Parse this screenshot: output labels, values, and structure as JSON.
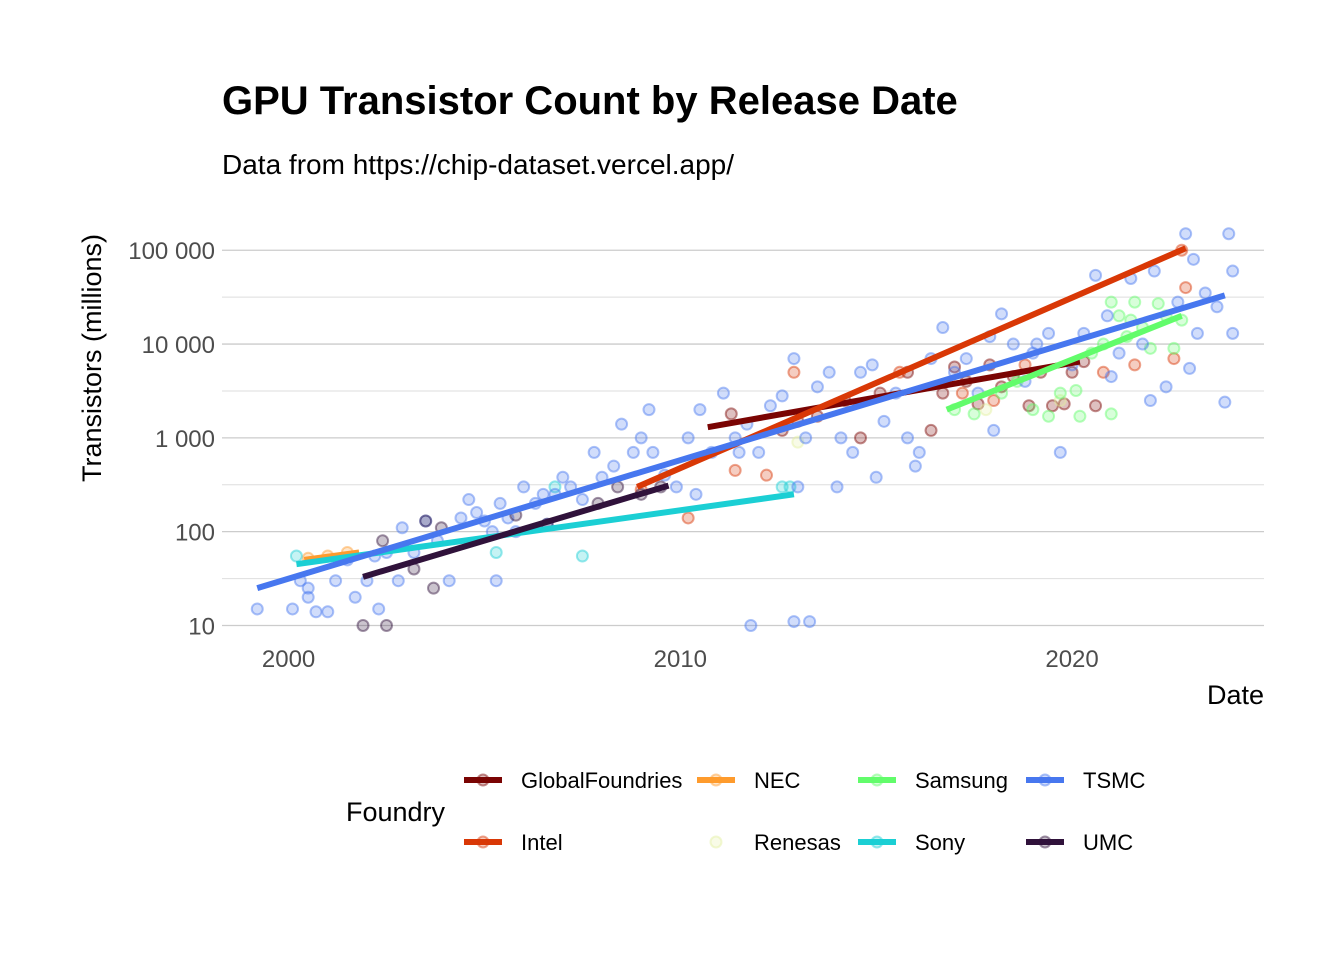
{
  "chart_data": {
    "type": "scatter",
    "title": "GPU Transistor Count by Release Date",
    "subtitle": "Data from https://chip-dataset.vercel.app/",
    "xlabel": "Date",
    "ylabel": "Transistors (millions)",
    "x_scale": "time",
    "y_scale": "log10",
    "xlim": [
      1998.3,
      2024.9
    ],
    "ylim": [
      7,
      200000
    ],
    "x_ticks": [
      2000,
      2010,
      2020
    ],
    "x_tick_labels": [
      "2000",
      "2010",
      "2020"
    ],
    "y_ticks": [
      10,
      100,
      1000,
      10000,
      100000
    ],
    "y_tick_labels": [
      "10",
      "100",
      "1 000",
      "10 000",
      "100 000"
    ],
    "grid": true,
    "legend_title": "Foundry",
    "legend_position": "bottom",
    "series": [
      {
        "name": "GlobalFoundries",
        "color": "#7a0403",
        "trend": [
          [
            2010.7,
            1300
          ],
          [
            2020.2,
            6500
          ]
        ],
        "points": [
          [
            2011.3,
            1800
          ],
          [
            2012.6,
            1200
          ],
          [
            2013.0,
            1500
          ],
          [
            2014.2,
            2500
          ],
          [
            2015.1,
            3000
          ],
          [
            2015.8,
            5000
          ],
          [
            2016.4,
            1200
          ],
          [
            2016.7,
            3000
          ],
          [
            2017.0,
            5700
          ],
          [
            2017.3,
            4000
          ],
          [
            2017.6,
            2300
          ],
          [
            2017.9,
            6000
          ],
          [
            2018.2,
            3500
          ],
          [
            2018.5,
            4500
          ],
          [
            2018.9,
            2200
          ],
          [
            2019.2,
            5000
          ],
          [
            2019.5,
            2200
          ],
          [
            2019.8,
            2300
          ],
          [
            2020.0,
            5000
          ],
          [
            2020.3,
            6500
          ],
          [
            2020.6,
            2200
          ],
          [
            2014.6,
            1000
          ],
          [
            2013.5,
            1700
          ]
        ]
      },
      {
        "name": "Intel",
        "color": "#d93806",
        "trend": [
          [
            2008.9,
            300
          ],
          [
            2022.9,
            105000
          ]
        ],
        "points": [
          [
            2009.0,
            280
          ],
          [
            2010.2,
            140
          ],
          [
            2011.4,
            450
          ],
          [
            2012.2,
            400
          ],
          [
            2012.9,
            5000
          ],
          [
            2015.6,
            5000
          ],
          [
            2017.2,
            3000
          ],
          [
            2018.0,
            2500
          ],
          [
            2018.8,
            6000
          ],
          [
            2020.8,
            5000
          ],
          [
            2021.6,
            6000
          ],
          [
            2022.8,
            100000
          ],
          [
            2022.6,
            7000
          ],
          [
            2022.9,
            40000
          ]
        ]
      },
      {
        "name": "NEC",
        "color": "#fe9b2d",
        "trend": [
          [
            2000.4,
            50
          ],
          [
            2001.8,
            60
          ]
        ],
        "points": [
          [
            2000.5,
            52
          ],
          [
            2001.0,
            55
          ],
          [
            2001.5,
            60
          ]
        ]
      },
      {
        "name": "Renesas",
        "color": "#e2f09f",
        "points": [
          [
            2013.0,
            900
          ],
          [
            2017.8,
            2000
          ],
          [
            2019.7,
            2500
          ]
        ]
      },
      {
        "name": "Samsung",
        "color": "#62fc6b",
        "trend": [
          [
            2016.8,
            2000
          ],
          [
            2022.8,
            20000
          ]
        ],
        "points": [
          [
            2017.0,
            2000
          ],
          [
            2017.5,
            1800
          ],
          [
            2018.2,
            3000
          ],
          [
            2018.6,
            4000
          ],
          [
            2019.0,
            2000
          ],
          [
            2019.4,
            1700
          ],
          [
            2019.7,
            3000
          ],
          [
            2020.1,
            3200
          ],
          [
            2020.5,
            8000
          ],
          [
            2020.8,
            10000
          ],
          [
            2021.0,
            28000
          ],
          [
            2021.2,
            20000
          ],
          [
            2021.4,
            12000
          ],
          [
            2021.6,
            28000
          ],
          [
            2021.8,
            15000
          ],
          [
            2022.0,
            9000
          ],
          [
            2022.2,
            27000
          ],
          [
            2022.4,
            20000
          ],
          [
            2022.6,
            9000
          ],
          [
            2022.8,
            18000
          ],
          [
            2021.0,
            1800
          ],
          [
            2020.2,
            1700
          ],
          [
            2021.5,
            18000
          ]
        ]
      },
      {
        "name": "Sony",
        "color": "#1bcfd4",
        "trend": [
          [
            2000.2,
            45
          ],
          [
            2012.9,
            250
          ]
        ],
        "points": [
          [
            2000.2,
            55
          ],
          [
            2005.3,
            60
          ],
          [
            2006.8,
            300
          ],
          [
            2007.5,
            55
          ],
          [
            2012.6,
            300
          ],
          [
            2012.8,
            300
          ]
        ]
      },
      {
        "name": "TSMC",
        "color": "#4777ef",
        "trend": [
          [
            1999.2,
            25
          ],
          [
            2023.9,
            33000
          ]
        ],
        "points": [
          [
            1999.2,
            15
          ],
          [
            2000.1,
            15
          ],
          [
            2000.3,
            30
          ],
          [
            2000.5,
            25
          ],
          [
            2000.5,
            20
          ],
          [
            2000.7,
            14
          ],
          [
            2001.0,
            14
          ],
          [
            2001.2,
            30
          ],
          [
            2001.5,
            50
          ],
          [
            2001.7,
            20
          ],
          [
            2002.0,
            30
          ],
          [
            2002.2,
            55
          ],
          [
            2002.5,
            60
          ],
          [
            2002.8,
            30
          ],
          [
            2002.9,
            110
          ],
          [
            2003.2,
            60
          ],
          [
            2003.5,
            130
          ],
          [
            2003.8,
            80
          ],
          [
            2004.1,
            30
          ],
          [
            2004.4,
            140
          ],
          [
            2004.6,
            220
          ],
          [
            2004.8,
            160
          ],
          [
            2005.0,
            130
          ],
          [
            2005.2,
            100
          ],
          [
            2005.4,
            200
          ],
          [
            2005.6,
            140
          ],
          [
            2005.8,
            100
          ],
          [
            2006.0,
            300
          ],
          [
            2006.3,
            200
          ],
          [
            2006.6,
            120
          ],
          [
            2006.8,
            250
          ],
          [
            2007.0,
            380
          ],
          [
            2007.2,
            300
          ],
          [
            2007.5,
            220
          ],
          [
            2007.8,
            700
          ],
          [
            2008.0,
            380
          ],
          [
            2008.3,
            500
          ],
          [
            2008.5,
            1400
          ],
          [
            2008.8,
            700
          ],
          [
            2009.0,
            1000
          ],
          [
            2009.3,
            700
          ],
          [
            2009.6,
            400
          ],
          [
            2009.9,
            300
          ],
          [
            2010.2,
            1000
          ],
          [
            2010.5,
            2000
          ],
          [
            2010.8,
            700
          ],
          [
            2011.1,
            3000
          ],
          [
            2011.4,
            1000
          ],
          [
            2011.7,
            1400
          ],
          [
            2012.0,
            700
          ],
          [
            2012.3,
            2200
          ],
          [
            2012.6,
            2800
          ],
          [
            2012.9,
            7000
          ],
          [
            2013.2,
            1000
          ],
          [
            2013.5,
            3500
          ],
          [
            2013.8,
            5000
          ],
          [
            2014.1,
            1000
          ],
          [
            2014.4,
            700
          ],
          [
            2014.6,
            5000
          ],
          [
            2014.9,
            6000
          ],
          [
            2015.2,
            1500
          ],
          [
            2015.5,
            3000
          ],
          [
            2015.8,
            1000
          ],
          [
            2016.1,
            700
          ],
          [
            2016.4,
            7000
          ],
          [
            2016.7,
            15000
          ],
          [
            2017.0,
            5000
          ],
          [
            2017.3,
            7000
          ],
          [
            2017.6,
            3000
          ],
          [
            2017.9,
            12000
          ],
          [
            2018.2,
            21000
          ],
          [
            2018.5,
            10000
          ],
          [
            2018.8,
            4000
          ],
          [
            2019.1,
            10000
          ],
          [
            2019.4,
            13000
          ],
          [
            2019.7,
            700
          ],
          [
            2020.0,
            6000
          ],
          [
            2020.3,
            13000
          ],
          [
            2020.6,
            54000
          ],
          [
            2020.9,
            20000
          ],
          [
            2021.2,
            8000
          ],
          [
            2021.5,
            50000
          ],
          [
            2021.8,
            10000
          ],
          [
            2022.1,
            60000
          ],
          [
            2022.4,
            3500
          ],
          [
            2022.7,
            28000
          ],
          [
            2022.9,
            150000
          ],
          [
            2023.1,
            80000
          ],
          [
            2023.4,
            35000
          ],
          [
            2023.7,
            25000
          ],
          [
            2023.9,
            2400
          ],
          [
            2024.0,
            150000
          ],
          [
            2024.1,
            60000
          ],
          [
            2011.8,
            10
          ],
          [
            2012.9,
            11
          ],
          [
            2013.3,
            11
          ],
          [
            2005.3,
            30
          ],
          [
            2002.3,
            15
          ],
          [
            2006.5,
            250
          ],
          [
            2009.2,
            2000
          ],
          [
            2011.5,
            700
          ],
          [
            2010.4,
            250
          ],
          [
            2013.0,
            300
          ],
          [
            2014.0,
            300
          ],
          [
            2015.0,
            380
          ],
          [
            2016.0,
            500
          ],
          [
            2018.0,
            1200
          ],
          [
            2019.0,
            8000
          ],
          [
            2021.0,
            4500
          ],
          [
            2022.0,
            2500
          ],
          [
            2023.0,
            5500
          ],
          [
            2023.2,
            13000
          ],
          [
            2024.1,
            13000
          ]
        ]
      },
      {
        "name": "UMC",
        "color": "#30123b",
        "trend": [
          [
            2001.9,
            33
          ],
          [
            2009.7,
            310
          ]
        ],
        "points": [
          [
            2001.9,
            10
          ],
          [
            2002.5,
            10
          ],
          [
            2002.4,
            80
          ],
          [
            2003.2,
            40
          ],
          [
            2003.5,
            130
          ],
          [
            2003.9,
            110
          ],
          [
            2003.7,
            25
          ],
          [
            2005.8,
            150
          ],
          [
            2006.6,
            120
          ],
          [
            2007.9,
            200
          ],
          [
            2008.4,
            300
          ],
          [
            2009.0,
            250
          ],
          [
            2009.5,
            300
          ]
        ]
      }
    ]
  }
}
